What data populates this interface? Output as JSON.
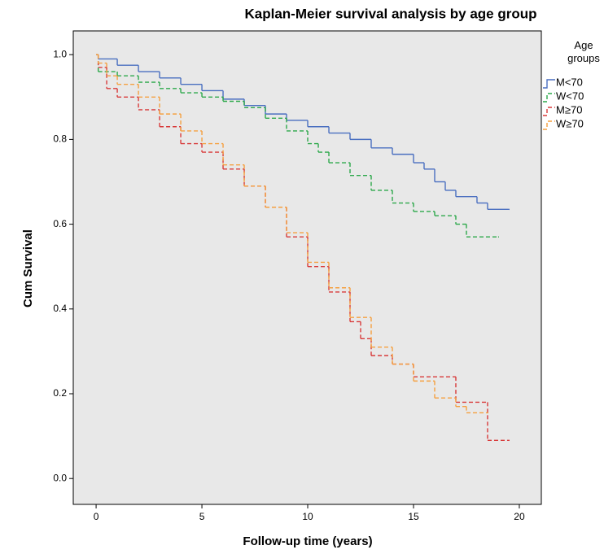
{
  "chart_data": {
    "type": "line",
    "drawstyle": "steps-post",
    "title": "Kaplan-Meier survival analysis by age group",
    "xlabel": "Follow-up time (years)",
    "ylabel": "Cum Survival",
    "legend_title": "Age groups",
    "legend": "right",
    "xlim": [
      -1.08,
      21.04
    ],
    "ylim": [
      -0.061,
      1.056
    ],
    "xticks": [
      0,
      5,
      10,
      15,
      20
    ],
    "yticks": [
      {
        "value": 0,
        "label": "0.0"
      },
      0.2,
      0.4,
      0.6,
      0.8,
      {
        "value": 1,
        "label": "1.0"
      }
    ],
    "background": "#e8e8e8",
    "series": [
      {
        "name": "M<70",
        "color": "#4a6fc0",
        "linestyle": "solid",
        "x": [
          0,
          0.1,
          1,
          2,
          3,
          4,
          5,
          6,
          7,
          8,
          9,
          10,
          11,
          12,
          13,
          14,
          15,
          15.5,
          16,
          16.5,
          17,
          18,
          18.5,
          19.5
        ],
        "values": [
          1.0,
          0.99,
          0.975,
          0.96,
          0.945,
          0.93,
          0.915,
          0.895,
          0.88,
          0.86,
          0.845,
          0.83,
          0.815,
          0.8,
          0.78,
          0.765,
          0.745,
          0.73,
          0.7,
          0.68,
          0.665,
          0.65,
          0.635,
          0.635
        ]
      },
      {
        "name": "W<70",
        "color": "#2ca84a",
        "linestyle": "dashed",
        "x": [
          0,
          0.1,
          1,
          2,
          3,
          4,
          5,
          6,
          7,
          8,
          9,
          10,
          10.5,
          11,
          12,
          13,
          14,
          15,
          16,
          17,
          17.5,
          19
        ],
        "values": [
          1.0,
          0.96,
          0.95,
          0.935,
          0.92,
          0.91,
          0.9,
          0.89,
          0.875,
          0.85,
          0.82,
          0.79,
          0.77,
          0.745,
          0.715,
          0.68,
          0.65,
          0.63,
          0.62,
          0.6,
          0.57,
          0.57
        ]
      },
      {
        "name": "M≥70",
        "color": "#d83a3a",
        "linestyle": "dashed",
        "x": [
          0,
          0.1,
          0.5,
          1,
          2,
          3,
          4,
          5,
          6,
          7,
          8,
          9,
          10,
          11,
          12,
          12.5,
          13,
          14,
          15,
          17,
          18.5,
          19.5
        ],
        "values": [
          1.0,
          0.97,
          0.92,
          0.9,
          0.87,
          0.83,
          0.79,
          0.77,
          0.73,
          0.69,
          0.64,
          0.57,
          0.5,
          0.44,
          0.37,
          0.33,
          0.29,
          0.27,
          0.24,
          0.18,
          0.09,
          0.09
        ]
      },
      {
        "name": "W≥70",
        "color": "#f5a040",
        "linestyle": "dashed",
        "x": [
          0,
          0.1,
          0.5,
          1,
          2,
          3,
          4,
          5,
          6,
          7,
          8,
          9,
          10,
          11,
          12,
          13,
          14,
          15,
          16,
          17,
          17.5,
          18.5
        ],
        "values": [
          1.0,
          0.98,
          0.95,
          0.93,
          0.9,
          0.86,
          0.82,
          0.79,
          0.74,
          0.69,
          0.64,
          0.58,
          0.51,
          0.45,
          0.38,
          0.31,
          0.27,
          0.23,
          0.19,
          0.17,
          0.155,
          0.155
        ]
      }
    ]
  }
}
